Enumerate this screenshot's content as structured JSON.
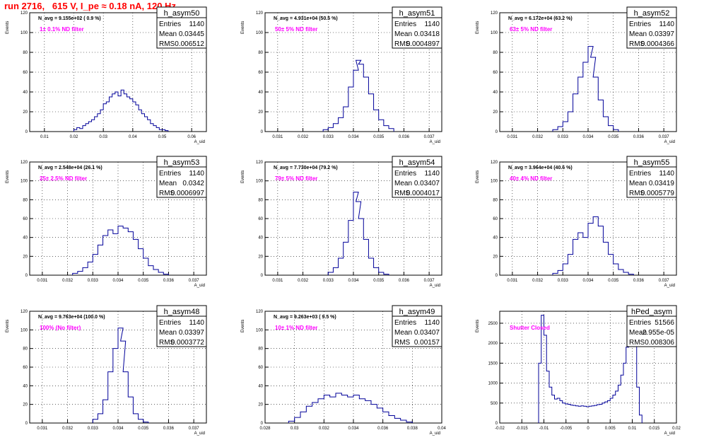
{
  "run_title": "run 2716,   615 V, I_pe ≈ 0.18 nA, 120 Hz",
  "colors": {
    "hist": "#000099",
    "annot": "#ff00ff",
    "title": "#ff0000"
  },
  "chart_data": [
    {
      "type": "histogram",
      "name": "h_asym50",
      "nlabel": "N_avg = 9.155e+02 ( 0.9 %)",
      "filter": "1± 0.1% ND filter",
      "stats": {
        "Entries": "1140",
        "Mean": "0.03445",
        "RMS": "0.006512"
      },
      "xlim": [
        0.005,
        0.065
      ],
      "ylim": [
        0,
        120
      ],
      "xticks": [
        0.01,
        0.02,
        0.03,
        0.04,
        0.05,
        0.06
      ],
      "xtick_labels": [
        "0.01",
        "0.02",
        "0.03",
        "0.04",
        "0.05",
        "0.06"
      ],
      "yticks": [
        0,
        20,
        40,
        60,
        80,
        100,
        120
      ],
      "xlabel": "A_uid",
      "ylabel": "Events",
      "bins": [
        [
          0.02,
          2
        ],
        [
          0.021,
          4
        ],
        [
          0.022,
          3
        ],
        [
          0.023,
          6
        ],
        [
          0.024,
          8
        ],
        [
          0.025,
          10
        ],
        [
          0.026,
          12
        ],
        [
          0.027,
          15
        ],
        [
          0.028,
          18
        ],
        [
          0.029,
          22
        ],
        [
          0.03,
          28
        ],
        [
          0.031,
          30
        ],
        [
          0.032,
          35
        ],
        [
          0.033,
          38
        ],
        [
          0.034,
          40
        ],
        [
          0.035,
          36
        ],
        [
          0.036,
          42
        ],
        [
          0.037,
          38
        ],
        [
          0.038,
          35
        ],
        [
          0.039,
          33
        ],
        [
          0.04,
          30
        ],
        [
          0.041,
          27
        ],
        [
          0.042,
          22
        ],
        [
          0.043,
          18
        ],
        [
          0.044,
          15
        ],
        [
          0.045,
          12
        ],
        [
          0.046,
          8
        ],
        [
          0.047,
          6
        ],
        [
          0.048,
          4
        ],
        [
          0.049,
          2
        ],
        [
          0.05,
          2
        ],
        [
          0.051,
          1
        ]
      ]
    },
    {
      "type": "histogram",
      "name": "h_asym51",
      "nlabel": "N_avg = 4.931e+04 (50.5 %)",
      "filter": "50± 5% ND filter",
      "stats": {
        "Entries": "1140",
        "Mean": "0.03418",
        "RMS": "0.0004897"
      },
      "xlim": [
        0.0305,
        0.0375
      ],
      "ylim": [
        0,
        120
      ],
      "xticks": [
        0.031,
        0.032,
        0.033,
        0.034,
        0.035,
        0.036,
        0.037
      ],
      "xtick_labels": [
        "0.031",
        "0.032",
        "0.033",
        "0.034",
        "0.035",
        "0.036",
        "0.037"
      ],
      "yticks": [
        0,
        20,
        40,
        60,
        80,
        100,
        120
      ],
      "xlabel": "A_uid",
      "ylabel": "Events",
      "bins": [
        [
          0.0328,
          2
        ],
        [
          0.033,
          4
        ],
        [
          0.0332,
          8
        ],
        [
          0.0334,
          14
        ],
        [
          0.0336,
          25
        ],
        [
          0.0338,
          45
        ],
        [
          0.034,
          62
        ],
        [
          0.0341,
          72
        ],
        [
          0.0342,
          68
        ],
        [
          0.0344,
          55
        ],
        [
          0.0346,
          38
        ],
        [
          0.0348,
          22
        ],
        [
          0.035,
          12
        ],
        [
          0.0352,
          6
        ],
        [
          0.0354,
          3
        ]
      ]
    },
    {
      "type": "histogram",
      "name": "h_asym52",
      "nlabel": "N_avg = 6.172e+04 (63.2 %)",
      "filter": "63± 5% ND filter",
      "stats": {
        "Entries": "1140",
        "Mean": "0.03397",
        "RMS": "0.0004366"
      },
      "xlim": [
        0.0305,
        0.0375
      ],
      "ylim": [
        0,
        120
      ],
      "xticks": [
        0.031,
        0.032,
        0.033,
        0.034,
        0.035,
        0.036,
        0.037
      ],
      "xtick_labels": [
        "0.031",
        "0.032",
        "0.033",
        "0.034",
        "0.035",
        "0.036",
        "0.037"
      ],
      "yticks": [
        0,
        20,
        40,
        60,
        80,
        100,
        120
      ],
      "xlabel": "A_uid",
      "ylabel": "Events",
      "bins": [
        [
          0.0326,
          2
        ],
        [
          0.0328,
          5
        ],
        [
          0.033,
          10
        ],
        [
          0.0332,
          20
        ],
        [
          0.0334,
          38
        ],
        [
          0.0336,
          55
        ],
        [
          0.0338,
          70
        ],
        [
          0.034,
          86
        ],
        [
          0.0341,
          75
        ],
        [
          0.0342,
          55
        ],
        [
          0.0344,
          32
        ],
        [
          0.0346,
          15
        ],
        [
          0.0348,
          6
        ],
        [
          0.035,
          2
        ]
      ]
    },
    {
      "type": "histogram",
      "name": "h_asym53",
      "nlabel": "N_avg = 2.548e+04 (26.1 %)",
      "filter": "25± 2.5% ND filter",
      "stats": {
        "Entries": "1140",
        "Mean": "0.0342",
        "RMS": "0.0006997"
      },
      "xlim": [
        0.0305,
        0.0375
      ],
      "ylim": [
        0,
        120
      ],
      "xticks": [
        0.031,
        0.032,
        0.033,
        0.034,
        0.035,
        0.036,
        0.037
      ],
      "xtick_labels": [
        "0.031",
        "0.032",
        "0.033",
        "0.034",
        "0.035",
        "0.036",
        "0.037"
      ],
      "yticks": [
        0,
        20,
        40,
        60,
        80,
        100,
        120
      ],
      "xlabel": "A_uid",
      "ylabel": "Events",
      "bins": [
        [
          0.0322,
          2
        ],
        [
          0.0324,
          4
        ],
        [
          0.0326,
          8
        ],
        [
          0.0328,
          14
        ],
        [
          0.033,
          22
        ],
        [
          0.0332,
          32
        ],
        [
          0.0334,
          42
        ],
        [
          0.0336,
          48
        ],
        [
          0.0338,
          44
        ],
        [
          0.034,
          52
        ],
        [
          0.0342,
          50
        ],
        [
          0.0344,
          46
        ],
        [
          0.0346,
          38
        ],
        [
          0.0348,
          28
        ],
        [
          0.035,
          18
        ],
        [
          0.0352,
          10
        ],
        [
          0.0354,
          6
        ],
        [
          0.0356,
          3
        ],
        [
          0.0358,
          1
        ]
      ]
    },
    {
      "type": "histogram",
      "name": "h_asym54",
      "nlabel": "N_avg = 7.730e+04 (79.2 %)",
      "filter": "79± 5% ND filter",
      "stats": {
        "Entries": "1140",
        "Mean": "0.03407",
        "RMS": "0.0004017"
      },
      "xlim": [
        0.0305,
        0.0375
      ],
      "ylim": [
        0,
        120
      ],
      "xticks": [
        0.031,
        0.032,
        0.033,
        0.034,
        0.035,
        0.036,
        0.037
      ],
      "xtick_labels": [
        "0.031",
        "0.032",
        "0.033",
        "0.034",
        "0.035",
        "0.036",
        "0.037"
      ],
      "yticks": [
        0,
        20,
        40,
        60,
        80,
        100,
        120
      ],
      "xlabel": "A_uid",
      "ylabel": "Events",
      "bins": [
        [
          0.033,
          3
        ],
        [
          0.0332,
          8
        ],
        [
          0.0334,
          18
        ],
        [
          0.0336,
          35
        ],
        [
          0.0338,
          58
        ],
        [
          0.034,
          88
        ],
        [
          0.0341,
          78
        ],
        [
          0.0342,
          60
        ],
        [
          0.0344,
          38
        ],
        [
          0.0346,
          18
        ],
        [
          0.0348,
          8
        ],
        [
          0.035,
          3
        ],
        [
          0.0352,
          1
        ]
      ]
    },
    {
      "type": "histogram",
      "name": "h_asym55",
      "nlabel": "N_avg = 3.964e+04 (40.6 %)",
      "filter": "40± 4% ND filter",
      "stats": {
        "Entries": "1140",
        "Mean": "0.03419",
        "RMS": "0.0005779"
      },
      "xlim": [
        0.0305,
        0.0375
      ],
      "ylim": [
        0,
        120
      ],
      "xticks": [
        0.031,
        0.032,
        0.033,
        0.034,
        0.035,
        0.036,
        0.037
      ],
      "xtick_labels": [
        "0.031",
        "0.032",
        "0.033",
        "0.034",
        "0.035",
        "0.036",
        "0.037"
      ],
      "yticks": [
        0,
        20,
        40,
        60,
        80,
        100,
        120
      ],
      "xlabel": "A_uid",
      "ylabel": "Events",
      "bins": [
        [
          0.0326,
          2
        ],
        [
          0.0328,
          5
        ],
        [
          0.033,
          12
        ],
        [
          0.0332,
          22
        ],
        [
          0.0334,
          38
        ],
        [
          0.0336,
          45
        ],
        [
          0.0338,
          40
        ],
        [
          0.034,
          55
        ],
        [
          0.0342,
          62
        ],
        [
          0.0344,
          52
        ],
        [
          0.0346,
          35
        ],
        [
          0.0348,
          22
        ],
        [
          0.035,
          12
        ],
        [
          0.0352,
          6
        ],
        [
          0.0354,
          3
        ],
        [
          0.0356,
          1
        ]
      ]
    },
    {
      "type": "histogram",
      "name": "h_asym48",
      "nlabel": "N_avg = 9.763e+04 (100.0 %)",
      "filter": "100% (No filter)",
      "stats": {
        "Entries": "1140",
        "Mean": "0.03397",
        "RMS": "0.0003772"
      },
      "xlim": [
        0.0305,
        0.0375
      ],
      "ylim": [
        0,
        120
      ],
      "xticks": [
        0.031,
        0.032,
        0.033,
        0.034,
        0.035,
        0.036,
        0.037
      ],
      "xtick_labels": [
        "0.031",
        "0.032",
        "0.033",
        "0.034",
        "0.035",
        "0.036",
        "0.037"
      ],
      "yticks": [
        0,
        20,
        40,
        60,
        80,
        100,
        120
      ],
      "xlabel": "A_uid",
      "ylabel": "Events",
      "bins": [
        [
          0.033,
          4
        ],
        [
          0.0332,
          10
        ],
        [
          0.0334,
          25
        ],
        [
          0.0336,
          55
        ],
        [
          0.0338,
          80
        ],
        [
          0.034,
          102
        ],
        [
          0.0341,
          88
        ],
        [
          0.0342,
          55
        ],
        [
          0.0344,
          28
        ],
        [
          0.0346,
          10
        ],
        [
          0.0348,
          4
        ],
        [
          0.035,
          1
        ]
      ]
    },
    {
      "type": "histogram",
      "name": "h_asym49",
      "nlabel": "N_avg = 9.263e+03 ( 9.5 %)",
      "filter": "10± 1% ND filter",
      "stats": {
        "Entries": "1140",
        "Mean": "0.03407",
        "RMS": "0.00157"
      },
      "xlim": [
        0.028,
        0.04
      ],
      "ylim": [
        0,
        120
      ],
      "xticks": [
        0.028,
        0.03,
        0.032,
        0.034,
        0.036,
        0.038,
        0.04
      ],
      "xtick_labels": [
        "0.028",
        "0.03",
        "0.032",
        "0.034",
        "0.036",
        "0.038",
        "0.04"
      ],
      "yticks": [
        0,
        20,
        40,
        60,
        80,
        100,
        120
      ],
      "xlabel": "A_uid",
      "ylabel": "Events",
      "bins": [
        [
          0.0296,
          2
        ],
        [
          0.03,
          6
        ],
        [
          0.0304,
          12
        ],
        [
          0.0308,
          18
        ],
        [
          0.0312,
          22
        ],
        [
          0.0316,
          26
        ],
        [
          0.032,
          30
        ],
        [
          0.0324,
          28
        ],
        [
          0.0328,
          32
        ],
        [
          0.0332,
          30
        ],
        [
          0.0336,
          28
        ],
        [
          0.034,
          30
        ],
        [
          0.0344,
          26
        ],
        [
          0.0348,
          24
        ],
        [
          0.0352,
          20
        ],
        [
          0.0356,
          16
        ],
        [
          0.036,
          12
        ],
        [
          0.0364,
          8
        ],
        [
          0.0368,
          5
        ],
        [
          0.0372,
          3
        ],
        [
          0.0376,
          1
        ]
      ]
    },
    {
      "type": "histogram",
      "name": "hPed_asym",
      "nlabel": "",
      "filter": "Shutter Closed",
      "stats": {
        "Entries": "51566",
        "Mean": "-2.955e-05",
        "RMS": "0.008306"
      },
      "xlim": [
        -0.02,
        0.02
      ],
      "ylim": [
        0,
        2800
      ],
      "xticks": [
        -0.02,
        -0.015,
        -0.01,
        -0.005,
        0,
        0.005,
        0.01,
        0.015,
        0.02
      ],
      "xtick_labels": [
        "-0.02",
        "-0.015",
        "-0.01",
        "-0.005",
        "0",
        "0.005",
        "0.01",
        "0.015",
        "0.02"
      ],
      "yticks": [
        0,
        500,
        1000,
        1500,
        2000,
        2500
      ],
      "xlabel": "A_uid",
      "ylabel": "Events",
      "bins": [
        [
          -0.0112,
          1500
        ],
        [
          -0.0106,
          2700
        ],
        [
          -0.01,
          2200
        ],
        [
          -0.0094,
          1300
        ],
        [
          -0.0088,
          900
        ],
        [
          -0.0082,
          700
        ],
        [
          -0.0076,
          600
        ],
        [
          -0.007,
          620
        ],
        [
          -0.0064,
          560
        ],
        [
          -0.0058,
          500
        ],
        [
          -0.0052,
          480
        ],
        [
          -0.0046,
          470
        ],
        [
          -0.004,
          450
        ],
        [
          -0.0034,
          440
        ],
        [
          -0.0028,
          430
        ],
        [
          -0.0022,
          420
        ],
        [
          -0.0016,
          430
        ],
        [
          -0.001,
          420
        ],
        [
          -0.0004,
          410
        ],
        [
          0.0002,
          420
        ],
        [
          0.0008,
          430
        ],
        [
          0.0014,
          440
        ],
        [
          0.002,
          460
        ],
        [
          0.0026,
          470
        ],
        [
          0.0032,
          500
        ],
        [
          0.0038,
          530
        ],
        [
          0.0044,
          560
        ],
        [
          0.005,
          620
        ],
        [
          0.0056,
          700
        ],
        [
          0.0062,
          800
        ],
        [
          0.0068,
          950
        ],
        [
          0.0074,
          1200
        ],
        [
          0.008,
          1500
        ],
        [
          0.0086,
          1900
        ],
        [
          0.0092,
          2400
        ],
        [
          0.0098,
          2600
        ],
        [
          0.0104,
          2100
        ],
        [
          0.011,
          900
        ],
        [
          0.0116,
          200
        ]
      ]
    }
  ]
}
